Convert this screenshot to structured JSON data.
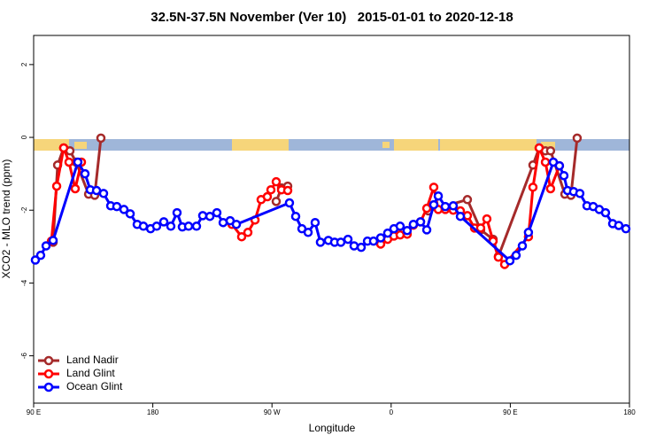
{
  "chart_data": {
    "type": "line",
    "title": "32.5N-37.5N November (Ver 10)   2015-01-01 to 2020-12-18",
    "x_label": "Longitude",
    "y_label": "XCO2 - MLO trend (ppm)",
    "xlim": [
      90,
      540
    ],
    "ylim": [
      -7.3,
      2.8
    ],
    "xticks": [
      {
        "value": 90,
        "label": "90 E"
      },
      180,
      {
        "value": 270,
        "label": "90 W"
      },
      {
        "value": 360,
        "label": "0"
      },
      {
        "value": 450,
        "label": "90 E"
      },
      {
        "value": 540,
        "label": "180"
      }
    ],
    "yticks": [
      -6,
      -4,
      -2,
      0,
      2
    ],
    "legend": "bottom-left",
    "series": [
      {
        "name": "Land Nadir",
        "color": "#a52a2a",
        "x": [
          104.7,
          108.1,
          112.7,
          117.4,
          122.1,
          131.5,
          136.1,
          140.8,
          null,
          273.2,
          277.2,
          281.9,
          null,
          388.2,
          417.6,
          427.6,
          437.0,
          441.0,
          467.1,
          471.8,
          476.5,
          480.4,
          491.2,
          495.8,
          500.5
        ],
        "values": [
          -2.88,
          -0.76,
          -0.29,
          -0.37,
          -0.68,
          -1.56,
          -1.59,
          -0.02,
          null,
          -1.76,
          -1.39,
          -1.34,
          null,
          -2.02,
          -1.71,
          -2.54,
          -2.8,
          -3.27,
          -0.76,
          -0.29,
          -0.37,
          -0.37,
          -1.56,
          -1.59,
          -0.02
        ]
      },
      {
        "name": "Land Glint",
        "color": "#ff0000",
        "x": [
          103.4,
          107.4,
          112.7,
          116.7,
          121.4,
          126.1,
          null,
          239.8,
          247.1,
          251.8,
          257.2,
          261.8,
          266.5,
          269.2,
          273.2,
          277.2,
          281.9,
          null,
          352.1,
          357.4,
          362.1,
          366.8,
          372.1,
          376.8,
          382.2,
          386.9,
          392.2,
          395.6,
          400.9,
          406.9,
          412.3,
          417.6,
          423.0,
          427.6,
          432.3,
          437.0,
          441.0,
          445.7,
          463.7,
          467.1,
          471.8,
          476.5,
          480.4,
          487.1
        ],
        "values": [
          -2.85,
          -1.34,
          -0.29,
          -0.68,
          -1.41,
          -0.68,
          null,
          -2.39,
          -2.73,
          -2.61,
          -2.27,
          -1.71,
          -1.63,
          -1.44,
          -1.22,
          -1.44,
          -1.46,
          null,
          -2.93,
          -2.8,
          -2.71,
          -2.68,
          -2.66,
          -2.41,
          -2.32,
          -1.95,
          -1.37,
          -1.98,
          -1.98,
          -2.0,
          -2.02,
          -2.15,
          -2.49,
          -2.49,
          -2.24,
          -2.85,
          -3.29,
          -3.49,
          -2.73,
          -1.37,
          -0.29,
          -0.68,
          -1.41,
          -0.78
        ]
      },
      {
        "name": "Ocean Glint",
        "color": "#0000ff",
        "x": [
          91.3,
          95.3,
          99.4,
          104.7,
          123.4,
          128.8,
          132.8,
          137.5,
          142.8,
          148.2,
          152.8,
          158.2,
          162.9,
          168.2,
          172.9,
          178.3,
          182.9,
          188.3,
          193.6,
          198.3,
          202.3,
          207.0,
          213.0,
          217.7,
          223.1,
          228.4,
          233.1,
          238.4,
          243.1,
          283.2,
          287.9,
          292.6,
          297.3,
          302.6,
          306.6,
          312.6,
          317.3,
          322.0,
          327.4,
          332.0,
          337.4,
          342.1,
          346.7,
          352.1,
          357.4,
          362.1,
          366.8,
          372.1,
          376.8,
          382.2,
          386.9,
          392.2,
          395.6,
          400.9,
          406.9,
          412.3,
          449.7,
          454.4,
          459.1,
          463.7,
          482.5,
          487.1,
          490.5,
          493.2,
          497.8,
          502.5,
          507.9,
          512.6,
          517.2,
          521.9,
          527.3,
          531.9,
          537.3
        ],
        "values": [
          -3.37,
          -3.24,
          -2.98,
          -2.83,
          -0.68,
          -1.0,
          -1.44,
          -1.46,
          -1.54,
          -1.88,
          -1.9,
          -1.98,
          -2.1,
          -2.39,
          -2.44,
          -2.51,
          -2.44,
          -2.32,
          -2.44,
          -2.07,
          -2.46,
          -2.44,
          -2.44,
          -2.15,
          -2.17,
          -2.07,
          -2.34,
          -2.29,
          -2.39,
          -1.8,
          -2.17,
          -2.51,
          -2.61,
          -2.34,
          -2.88,
          -2.83,
          -2.88,
          -2.88,
          -2.8,
          -2.98,
          -3.02,
          -2.85,
          -2.85,
          -2.76,
          -2.63,
          -2.51,
          -2.44,
          -2.56,
          -2.39,
          -2.32,
          -2.54,
          -1.85,
          -1.61,
          -1.9,
          -1.88,
          -2.17,
          -3.39,
          -3.24,
          -2.98,
          -2.61,
          -0.68,
          -0.78,
          -1.05,
          -1.46,
          -1.49,
          -1.54,
          -1.88,
          -1.9,
          -1.98,
          -2.07,
          -2.37,
          -2.42,
          -2.51
        ]
      }
    ]
  }
}
